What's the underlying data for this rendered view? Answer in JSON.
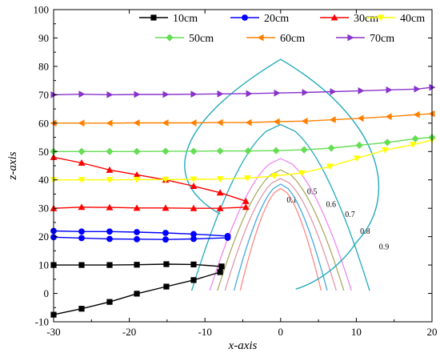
{
  "chart_data": {
    "type": "line",
    "title": "",
    "xlabel": "x-axis",
    "ylabel": "z-axis",
    "xlim": [
      -30,
      20
    ],
    "ylim": [
      -10,
      100
    ],
    "xticks": [
      -30,
      -20,
      -10,
      0,
      10,
      20
    ],
    "xtick_labels": [
      "-30",
      "-20",
      "-10",
      "0",
      "10",
      "20"
    ],
    "yticks": [
      -10,
      0,
      10,
      20,
      30,
      40,
      50,
      60,
      70,
      80,
      90,
      100
    ],
    "ytick_labels": [
      "-10",
      "0",
      "10",
      "20",
      "30",
      "40",
      "50",
      "60",
      "70",
      "80",
      "90",
      "100"
    ],
    "legend_position": "top-right",
    "series": [
      {
        "name": "10cm",
        "color": "#000000",
        "marker": "square",
        "lines": [
          {
            "x": [
              -30,
              -26.3,
              -22.6,
              -19,
              -15.1,
              -11.5,
              -7.8
            ],
            "y": [
              10,
              10,
              10,
              10.1,
              10.3,
              10.2,
              9.5
            ]
          },
          {
            "x": [
              -30,
              -26.3,
              -22.6,
              -19,
              -15.1,
              -11.5,
              -8
            ],
            "y": [
              -7.5,
              -5.4,
              -3,
              -0.1,
              2.4,
              4.7,
              7.5
            ]
          }
        ]
      },
      {
        "name": "20cm",
        "color": "#0000ff",
        "marker": "circle",
        "lines": [
          {
            "x": [
              -30,
              -26.3,
              -22.6,
              -19,
              -15.2,
              -11.5,
              -7
            ],
            "y": [
              22,
              21.8,
              21.8,
              21.6,
              21.3,
              20.9,
              20.2
            ]
          },
          {
            "x": [
              -30,
              -26.3,
              -22.6,
              -19,
              -15.2,
              -11.5,
              -7
            ],
            "y": [
              19.8,
              19.5,
              19.2,
              19.1,
              19.0,
              19.2,
              19.6
            ]
          }
        ]
      },
      {
        "name": "30cm",
        "color": "#ff0000",
        "marker": "triangle-up",
        "lines": [
          {
            "x": [
              -30,
              -26.3,
              -22.6,
              -19,
              -15.2,
              -11.5,
              -8,
              -4.6
            ],
            "y": [
              48,
              46,
              43.5,
              41.8,
              40,
              37.8,
              35.5,
              32.5
            ]
          },
          {
            "x": [
              -30,
              -26.3,
              -22.6,
              -19,
              -15.2,
              -11.5,
              -8,
              -4.6
            ],
            "y": [
              30,
              30.4,
              30.3,
              30.1,
              30.1,
              30.0,
              30.0,
              30.4
            ]
          }
        ]
      },
      {
        "name": "40cm",
        "color": "#ffff00",
        "marker": "triangle-down",
        "lines": [
          {
            "x": [
              -30,
              -26.3,
              -22.6,
              -19,
              -15.2,
              -11.5,
              -8,
              -4.4,
              -0.8,
              2.8,
              6.5,
              10.1,
              13.8,
              17.5,
              20
            ],
            "y": [
              40,
              40,
              40,
              40.1,
              40.1,
              40.2,
              40.3,
              40.6,
              41.4,
              42.4,
              44.7,
              47.6,
              50.5,
              52.4,
              54
            ]
          }
        ]
      },
      {
        "name": "50cm",
        "color": "#66dd55",
        "marker": "diamond",
        "lines": [
          {
            "x": [
              -30,
              -26.3,
              -22.6,
              -19,
              -15.2,
              -11.5,
              -8,
              -4.3,
              -0.6,
              3.1,
              6.7,
              10.4,
              14.1,
              17.8,
              20
            ],
            "y": [
              50,
              50,
              50,
              50,
              50.1,
              50.1,
              50.2,
              50.2,
              50.3,
              50.6,
              51.2,
              52.2,
              53.2,
              54.5,
              55
            ]
          }
        ]
      },
      {
        "name": "60cm",
        "color": "#ff8000",
        "marker": "triangle-left",
        "lines": [
          {
            "x": [
              -30,
              -26.3,
              -22.6,
              -19,
              -15.2,
              -11.5,
              -8,
              -4.2,
              -0.5,
              3.2,
              6.9,
              10.6,
              14.3,
              18,
              20
            ],
            "y": [
              60,
              60,
              60,
              60.1,
              60.1,
              60.1,
              60.2,
              60.2,
              60.5,
              60.7,
              61.2,
              61.7,
              62.3,
              63.0,
              63.3
            ]
          }
        ]
      },
      {
        "name": "70cm",
        "color": "#8833cc",
        "marker": "triangle-right",
        "lines": [
          {
            "x": [
              -30,
              -26.3,
              -22.6,
              -19,
              -15.2,
              -11.5,
              -8,
              -4.2,
              -0.5,
              3.2,
              6.9,
              10.6,
              14.3,
              18,
              20
            ],
            "y": [
              70,
              70.2,
              70,
              70.1,
              70.1,
              70.2,
              70.3,
              70.4,
              70.6,
              70.8,
              71.1,
              71.4,
              71.7,
              72.0,
              72.6
            ]
          }
        ]
      }
    ],
    "contours": [
      {
        "label": "0.1",
        "color": "#ff8888",
        "label_pos": [
          0.8,
          32
        ]
      },
      {
        "label": "0.5",
        "color": "#44aadd",
        "label_pos": [
          3.5,
          35
        ]
      },
      {
        "label": "0.6",
        "color": "#dd99aa",
        "label_pos": [
          6,
          30.5
        ]
      },
      {
        "label": "0.7",
        "color": "#aaaa66",
        "label_pos": [
          8.5,
          27
        ]
      },
      {
        "label": "0.8",
        "color": "#ee88ee",
        "label_pos": [
          10.5,
          21
        ]
      },
      {
        "label": "0.9",
        "color": "#22aabb",
        "label_pos": [
          13,
          15.5
        ]
      }
    ]
  }
}
